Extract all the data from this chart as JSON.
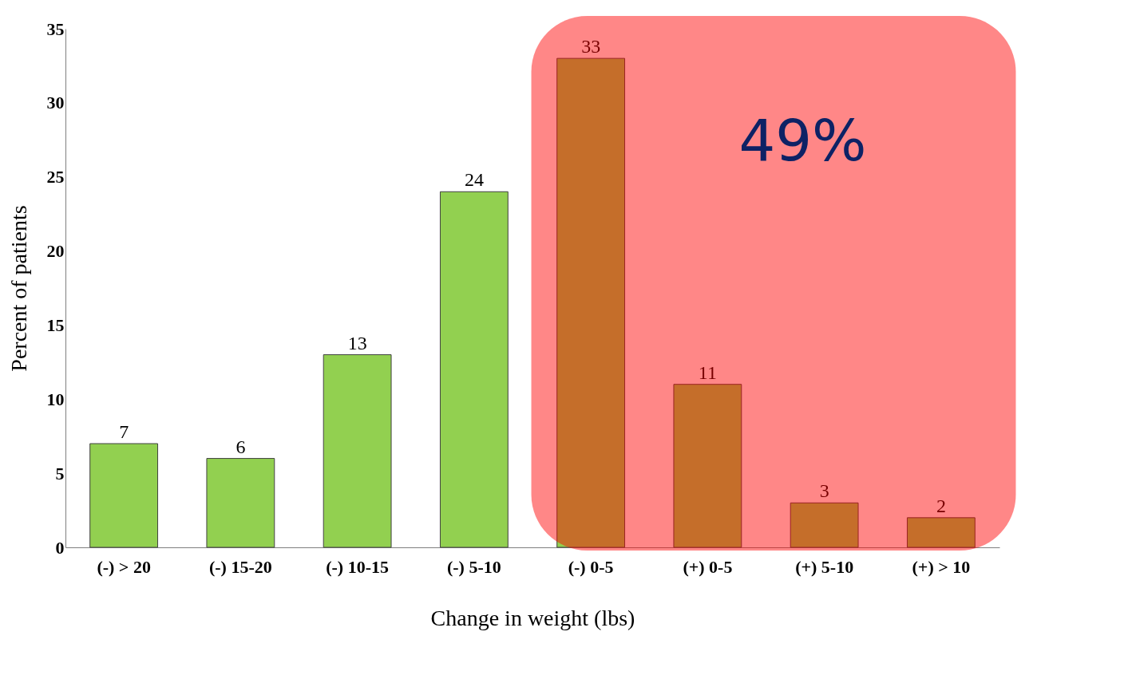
{
  "chart_data": {
    "type": "bar",
    "xlabel": "Change in weight (lbs)",
    "ylabel": "Percent of patients",
    "categories": [
      "(-) > 20",
      "(-) 15-20",
      "(-) 10-15",
      "(-) 5-10",
      "(-) 0-5",
      "(+) 0-5",
      "(+) 5-10",
      "(+) > 10"
    ],
    "values": [
      7,
      6,
      13,
      24,
      33,
      11,
      3,
      2
    ],
    "color": "#92d050",
    "ylim": [
      0,
      35
    ],
    "yticks": [
      0,
      5,
      10,
      15,
      20,
      25,
      30,
      35
    ],
    "grid": false,
    "data_labels": true,
    "bands": [
      {
        "axis": "x",
        "from": "(-) 0-5",
        "to": "(+) > 10",
        "label": "49%",
        "color": "#ff0000"
      }
    ]
  }
}
